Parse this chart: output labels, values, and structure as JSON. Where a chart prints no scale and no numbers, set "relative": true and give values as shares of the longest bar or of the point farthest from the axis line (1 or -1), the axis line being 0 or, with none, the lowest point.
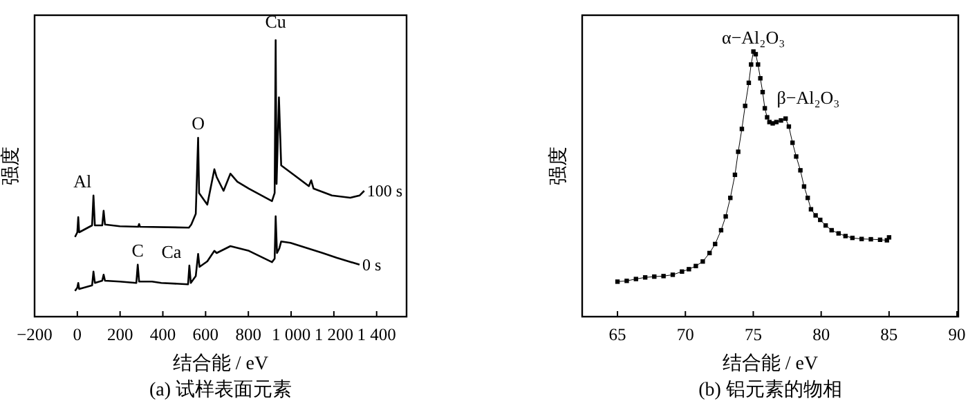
{
  "chart_data": [
    {
      "type": "line",
      "relative": true,
      "title": "(a)  试样表面元素",
      "xlabel": "结合能 / eV",
      "ylabel": "强度",
      "xlim": [
        -200,
        1540
      ],
      "xticks": [
        {
          "value": -200,
          "label": "−200"
        },
        0,
        200,
        400,
        600,
        800,
        {
          "value": 1000,
          "label": "1 000"
        },
        {
          "value": 1200,
          "label": "1 200"
        },
        {
          "value": 1400,
          "label": "1 400"
        }
      ],
      "marker": "none",
      "line_style": "solid",
      "series": [
        {
          "name": "100 s",
          "color": "#000000",
          "x": [
            -10.8,
            0,
            4.3,
            8.6,
            69,
            75.5,
            82,
            116.5,
            123,
            129.4,
            198.5,
            284.8,
            289,
            293,
            522,
            533,
            554,
            565,
            569.6,
            608,
            641,
            651.6,
            684,
            716,
            748.6,
            802.6,
            910.5,
            923,
            927.7,
            932,
            943,
            953.6,
            997,
            1083,
            1094,
            1105,
            1191,
            1277,
            1320,
            1342
          ],
          "values": [
            0.288,
            0.305,
            0.36,
            0.305,
            0.33,
            0.438,
            0.33,
            0.33,
            0.383,
            0.333,
            0.327,
            0.325,
            0.335,
            0.325,
            0.322,
            0.333,
            0.372,
            0.647,
            0.447,
            0.405,
            0.533,
            0.505,
            0.455,
            0.517,
            0.488,
            0.463,
            0.418,
            0.447,
            1,
            0.48,
            0.793,
            0.547,
            0.522,
            0.472,
            0.493,
            0.463,
            0.438,
            0.43,
            0.438,
            0.455
          ]
        },
        {
          "name": "0 s",
          "color": "#000000",
          "x": [
            -10.8,
            0,
            4.3,
            8.6,
            69,
            75.5,
            82,
            116.5,
            123,
            129.4,
            198.5,
            276,
            282.6,
            289,
            349.5,
            392.7,
            518,
            524,
            530.7,
            554,
            565,
            571.5,
            608,
            641,
            651.6,
            716,
            802.6,
            910.5,
            923,
            927.7,
            934,
            945,
            953.6,
            997,
            1148,
            1212.5,
            1320
          ],
          "values": [
            0.093,
            0.105,
            0.122,
            0.1,
            0.113,
            0.163,
            0.122,
            0.13,
            0.152,
            0.13,
            0.127,
            0.122,
            0.188,
            0.127,
            0.127,
            0.122,
            0.117,
            0.185,
            0.122,
            0.147,
            0.227,
            0.18,
            0.2,
            0.238,
            0.23,
            0.255,
            0.238,
            0.197,
            0.21,
            0.363,
            0.23,
            0.247,
            0.272,
            0.267,
            0.23,
            0.213,
            0.188
          ]
        }
      ],
      "annotations": [
        {
          "text": "Al",
          "x": 75.5,
          "y": 0.438
        },
        {
          "text": "O",
          "x": 565,
          "y": 0.647
        },
        {
          "text": "Cu",
          "x": 927.7,
          "y": 1
        },
        {
          "text": "C",
          "x": 282.6,
          "y": 0.188
        },
        {
          "text": "Ca",
          "x": 349.5,
          "y": 0.127
        }
      ]
    },
    {
      "type": "line",
      "relative": true,
      "title": "(b)  铝元素的物相",
      "xlabel": "结合能 / eV",
      "ylabel": "强度",
      "xlim": [
        62.4,
        90.1
      ],
      "xticks": [
        65,
        70,
        75,
        80,
        85,
        90
      ],
      "marker": "square",
      "line_style": "solid",
      "series": [
        {
          "color": "#000000",
          "x": [
            65,
            65.68,
            66.36,
            67.04,
            67.71,
            68.39,
            69.07,
            69.75,
            70.26,
            70.77,
            71.28,
            71.78,
            72.19,
            72.63,
            72.97,
            73.31,
            73.65,
            73.89,
            74.16,
            74.4,
            74.67,
            74.84,
            75.01,
            75.18,
            75.35,
            75.52,
            75.69,
            75.85,
            76.02,
            76.19,
            76.43,
            76.7,
            77.04,
            77.38,
            77.62,
            77.89,
            78.16,
            78.47,
            78.74,
            79.01,
            79.25,
            79.59,
            79.93,
            80.33,
            80.77,
            81.28,
            81.79,
            82.3,
            82.98,
            83.66,
            84.34,
            84.84,
            85
          ],
          "values": [
            0.132,
            0.135,
            0.142,
            0.148,
            0.151,
            0.153,
            0.158,
            0.17,
            0.179,
            0.191,
            0.208,
            0.24,
            0.274,
            0.326,
            0.378,
            0.448,
            0.535,
            0.622,
            0.708,
            0.795,
            0.882,
            0.951,
            1,
            0.99,
            0.951,
            0.899,
            0.847,
            0.786,
            0.752,
            0.734,
            0.729,
            0.734,
            0.74,
            0.747,
            0.717,
            0.656,
            0.604,
            0.552,
            0.491,
            0.448,
            0.405,
            0.382,
            0.365,
            0.344,
            0.326,
            0.314,
            0.304,
            0.297,
            0.293,
            0.292,
            0.29,
            0.288,
            0.299
          ]
        }
      ],
      "annotations": [
        {
          "text": "α−Al₂O₃",
          "x": 75.01,
          "y": 1
        },
        {
          "text": "β−Al₂O₃",
          "x": 77.04,
          "y": 0.74
        }
      ]
    }
  ]
}
